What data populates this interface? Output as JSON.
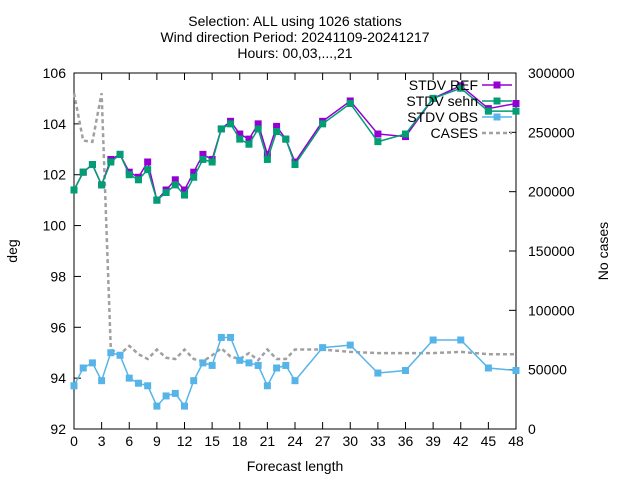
{
  "chart_data": {
    "type": "line",
    "title_lines": [
      "Selection: ALL using  1026 stations",
      "Wind direction   Period: 20241109-20241217",
      "Hours: 00,03,...,21"
    ],
    "xlabel": "Forecast length",
    "ylabel": "deg",
    "y2label": "No cases",
    "xlim": [
      0,
      48
    ],
    "ylim": [
      92,
      106
    ],
    "y2lim": [
      0,
      300000
    ],
    "x_ticks": [
      0,
      3,
      6,
      9,
      12,
      15,
      18,
      21,
      24,
      27,
      30,
      33,
      36,
      39,
      42,
      45,
      48
    ],
    "y_ticks": [
      92,
      94,
      96,
      98,
      100,
      102,
      104,
      106
    ],
    "y2_ticks": [
      0,
      50000,
      100000,
      150000,
      200000,
      250000,
      300000
    ],
    "legend_position": "top-right",
    "grid": false,
    "series": [
      {
        "name": "STDV REF",
        "axis": "y",
        "color": "#9400d3",
        "marker": "square-filled",
        "x": [
          0,
          1,
          2,
          3,
          4,
          5,
          6,
          7,
          8,
          9,
          10,
          11,
          12,
          13,
          14,
          15,
          16,
          17,
          18,
          19,
          20,
          21,
          22,
          23,
          24,
          27,
          30,
          33,
          36,
          39,
          42,
          45,
          48
        ],
        "values": [
          101.4,
          102.1,
          102.4,
          101.6,
          102.6,
          102.8,
          102.1,
          101.9,
          102.5,
          101.0,
          101.4,
          101.8,
          101.4,
          102.1,
          102.8,
          102.6,
          103.8,
          104.1,
          103.6,
          103.4,
          104.0,
          102.8,
          103.9,
          103.4,
          102.5,
          104.1,
          104.9,
          103.6,
          103.5,
          105.0,
          105.5,
          104.6,
          104.8
        ]
      },
      {
        "name": "STDV sehn",
        "axis": "y",
        "color": "#009e73",
        "marker": "square-filled",
        "x": [
          0,
          1,
          2,
          3,
          4,
          5,
          6,
          7,
          8,
          9,
          10,
          11,
          12,
          13,
          14,
          15,
          16,
          17,
          18,
          19,
          20,
          21,
          22,
          23,
          24,
          27,
          30,
          33,
          36,
          39,
          42,
          45,
          48
        ],
        "values": [
          101.4,
          102.1,
          102.4,
          101.6,
          102.5,
          102.8,
          102.0,
          101.8,
          102.2,
          101.0,
          101.3,
          101.6,
          101.2,
          101.9,
          102.6,
          102.5,
          103.8,
          104.0,
          103.4,
          103.2,
          103.8,
          102.6,
          103.7,
          103.4,
          102.4,
          104.0,
          104.8,
          103.3,
          103.6,
          105.0,
          105.4,
          104.5,
          104.5
        ]
      },
      {
        "name": "STDV OBS",
        "axis": "y",
        "color": "#56b4e9",
        "marker": "square-filled",
        "x": [
          0,
          1,
          2,
          3,
          4,
          5,
          6,
          7,
          8,
          9,
          10,
          11,
          12,
          13,
          14,
          15,
          16,
          17,
          18,
          19,
          20,
          21,
          22,
          23,
          24,
          27,
          30,
          33,
          36,
          39,
          42,
          45,
          48
        ],
        "values": [
          93.7,
          94.4,
          94.6,
          93.9,
          95.0,
          94.9,
          94.0,
          93.8,
          93.7,
          92.9,
          93.3,
          93.4,
          92.9,
          93.9,
          94.6,
          94.5,
          95.6,
          95.6,
          94.7,
          94.6,
          94.5,
          93.7,
          94.4,
          94.5,
          93.9,
          95.2,
          95.3,
          94.2,
          94.3,
          95.5,
          95.5,
          94.4,
          94.3
        ]
      },
      {
        "name": "CASES",
        "axis": "y2",
        "color": "#a0a0a0",
        "marker": "none",
        "dashed": true,
        "x": [
          0,
          1,
          2,
          3,
          4,
          5,
          6,
          7,
          8,
          9,
          10,
          11,
          12,
          13,
          14,
          15,
          16,
          17,
          18,
          19,
          20,
          21,
          22,
          23,
          24,
          27,
          30,
          33,
          36,
          39,
          42,
          45,
          48
        ],
        "values": [
          283000,
          243000,
          242000,
          283000,
          67000,
          63000,
          70000,
          63000,
          59000,
          67000,
          60000,
          59000,
          67000,
          59000,
          57000,
          62000,
          68000,
          61000,
          59000,
          64000,
          58000,
          67000,
          59000,
          59000,
          67000,
          67000,
          65000,
          64000,
          64000,
          64000,
          65000,
          63000,
          63000
        ]
      }
    ]
  }
}
